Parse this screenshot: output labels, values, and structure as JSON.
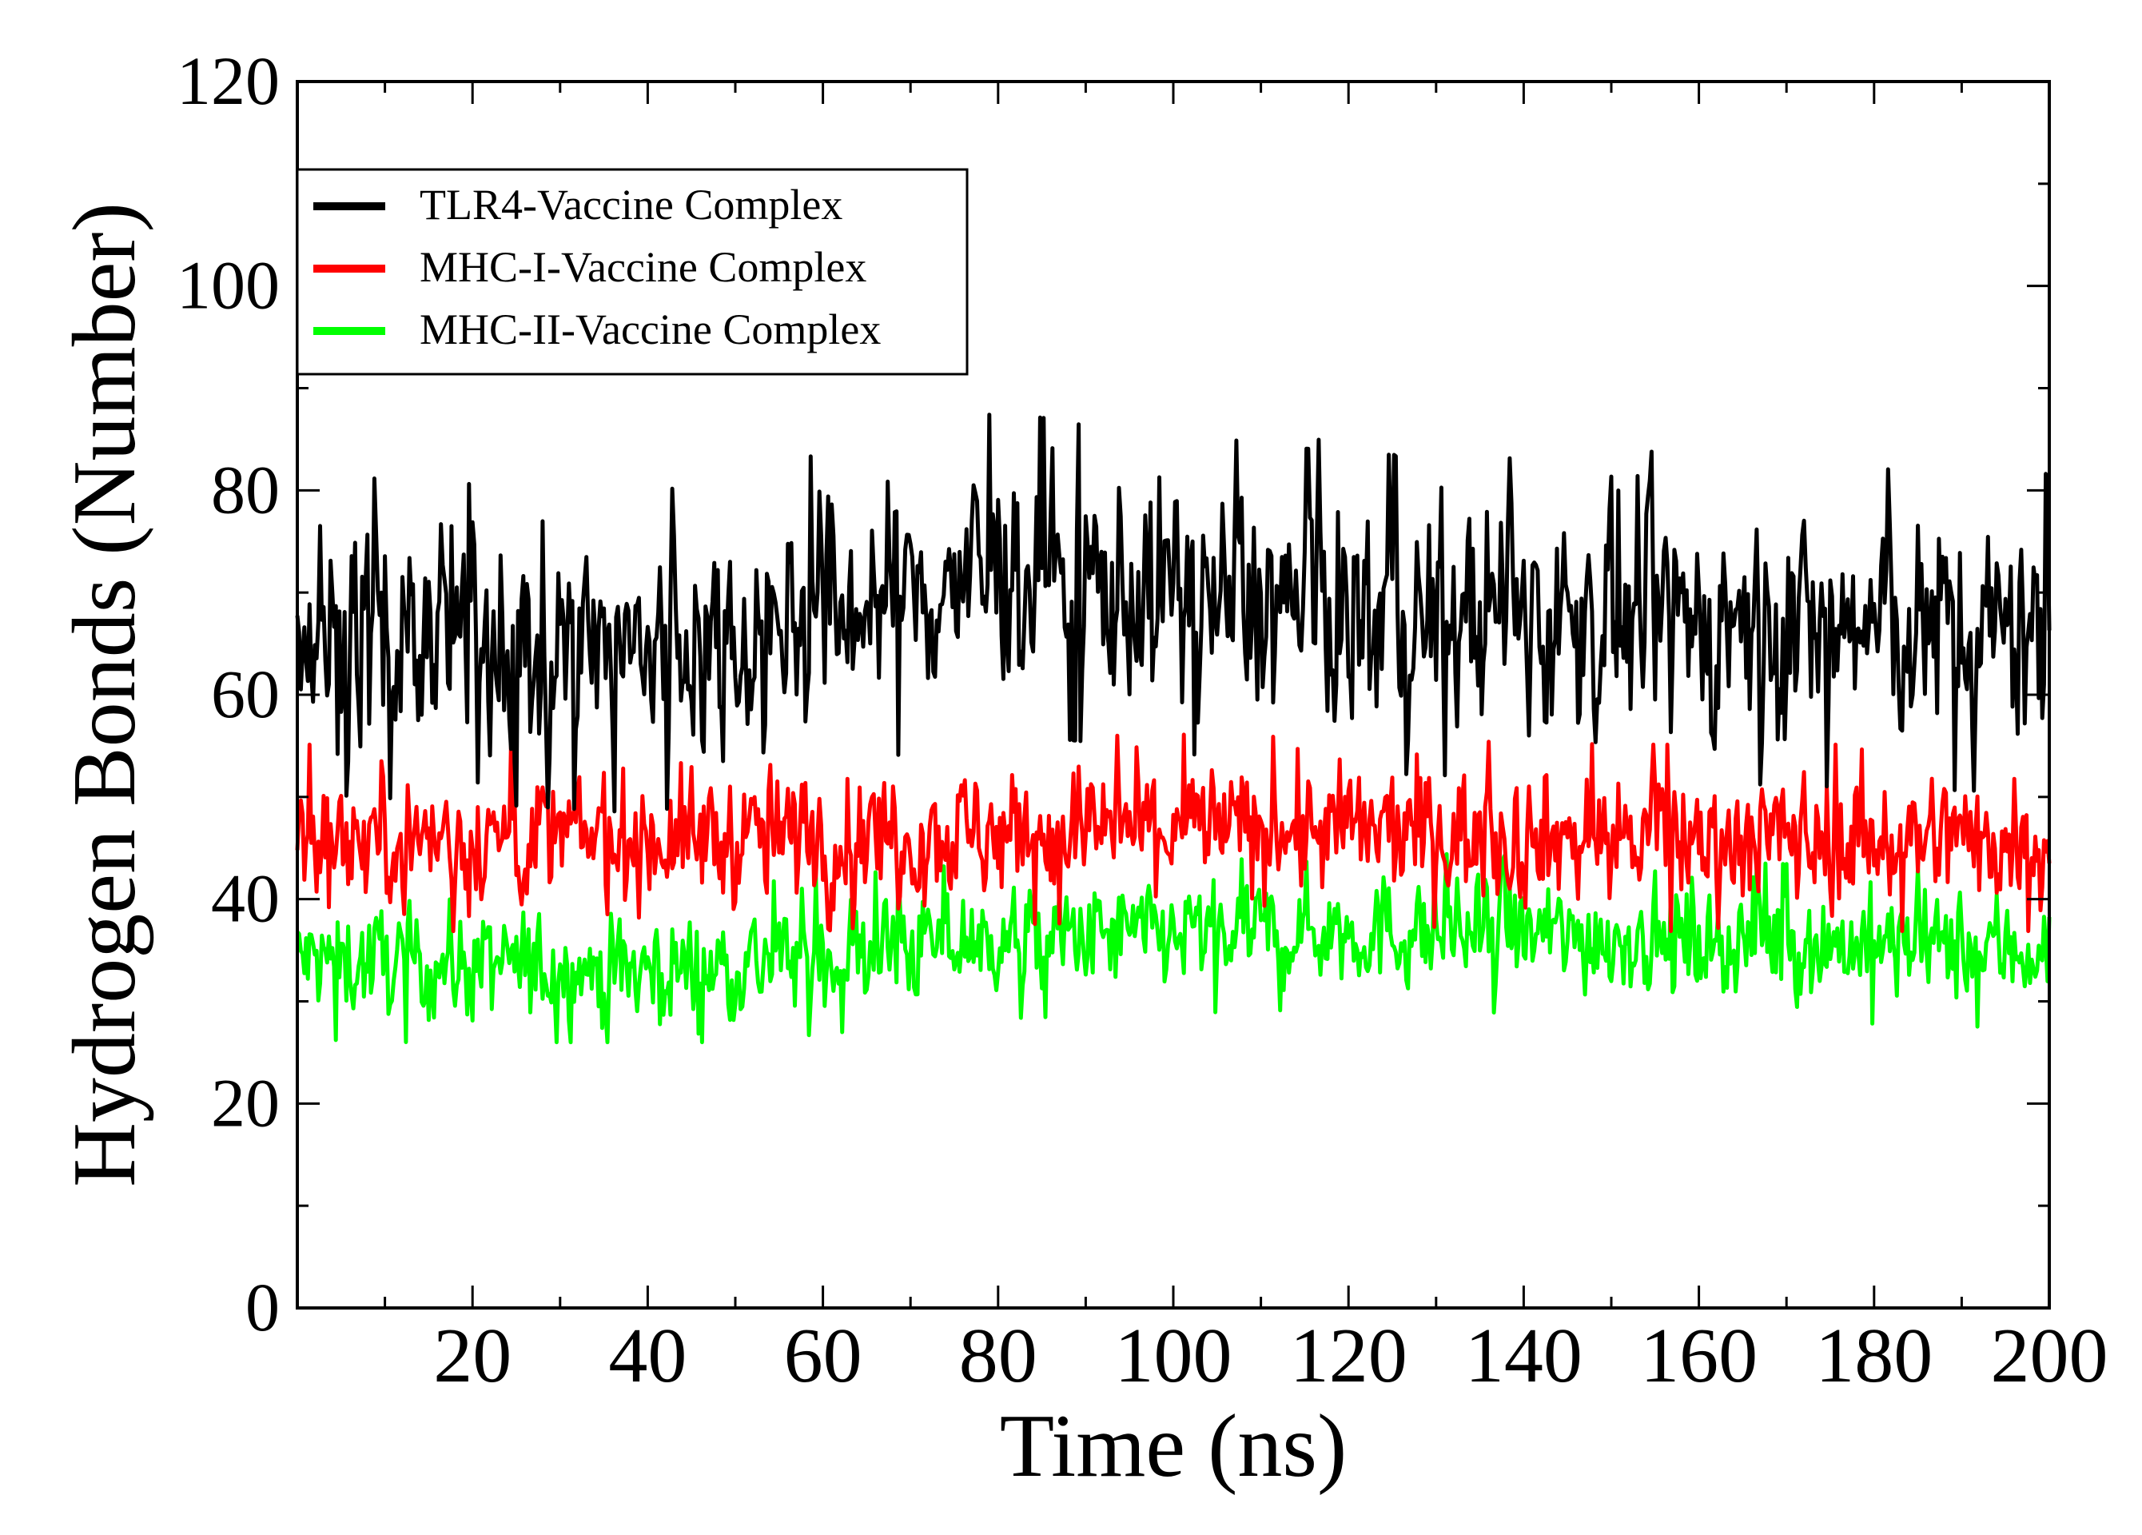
{
  "chart_data": {
    "type": "line",
    "title": "",
    "xlabel": "Time (ns)",
    "ylabel": "Hydrogen Bonds (Number)",
    "xlim": [
      0,
      200
    ],
    "ylim": [
      0,
      120
    ],
    "x_ticks": [
      20,
      40,
      60,
      80,
      100,
      120,
      140,
      160,
      180,
      200
    ],
    "y_ticks": [
      0,
      20,
      40,
      60,
      80,
      100,
      120
    ],
    "grid": false,
    "legend_position": "top-left",
    "series": [
      {
        "name": "TLR4-Vaccine Complex",
        "color": "#000000",
        "mean": 67,
        "noise": 6.5,
        "min": 46,
        "max": 88,
        "trend": [
          [
            0,
            66
          ],
          [
            40,
            64
          ],
          [
            80,
            72
          ],
          [
            120,
            68
          ],
          [
            160,
            67
          ],
          [
            200,
            66
          ]
        ]
      },
      {
        "name": "MHC-I-Vaccine Complex",
        "color": "#ff0000",
        "mean": 46,
        "noise": 3.8,
        "min": 36,
        "max": 60,
        "trend": [
          [
            0,
            46
          ],
          [
            50,
            46
          ],
          [
            100,
            47
          ],
          [
            150,
            46
          ],
          [
            200,
            46
          ]
        ]
      },
      {
        "name": "MHC-II-Vaccine Complex",
        "color": "#00ff00",
        "mean": 35,
        "noise": 3.2,
        "min": 26,
        "max": 46,
        "trend": [
          [
            0,
            34
          ],
          [
            40,
            33
          ],
          [
            80,
            36
          ],
          [
            120,
            37
          ],
          [
            160,
            36
          ],
          [
            200,
            35
          ]
        ]
      }
    ]
  }
}
